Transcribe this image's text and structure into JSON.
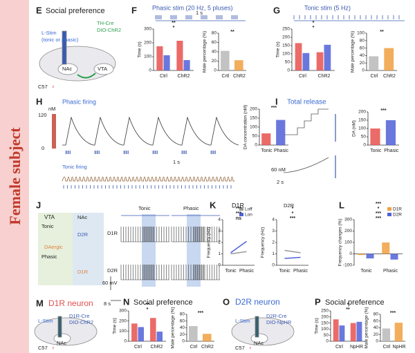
{
  "side_label": "Female subject",
  "panels": [
    {
      "letter": "E",
      "title": "Social preference",
      "labels": [
        "L-Stim",
        "(tonic or phasic)",
        "TH-Cre",
        "DIO-ChR2",
        "NAc",
        "VTA",
        "C57",
        "♀"
      ]
    },
    {
      "letter": "F",
      "title": "Phasic stim (20 Hz, 5 pluses)",
      "labels": [
        "1 s"
      ],
      "charts": [
        {
          "type": "bar",
          "ylabel": "Time (s)",
          "categories": [
            "Ctrl",
            "ChR2"
          ],
          "series": [
            {
              "color": "#e8514f",
              "values": [
                175,
                215
              ]
            },
            {
              "color": "#5060d8",
              "values": [
                110,
                75
              ]
            }
          ],
          "ylim": [
            0,
            300
          ],
          "yticks": [
            0,
            100,
            200,
            300
          ],
          "annotations": [
            "*",
            "**"
          ]
        },
        {
          "type": "bar",
          "ylabel": "Male percentage (%)",
          "categories": [
            "Crtl",
            "ChR2"
          ],
          "colors": [
            "#b8b8b8",
            "#f0a040"
          ],
          "series": [
            {
              "values": [
                42,
                22
              ]
            }
          ],
          "ylim": [
            0,
            80
          ],
          "yticks": [
            0,
            20,
            40,
            60,
            80
          ],
          "annotations": [
            "**"
          ]
        }
      ]
    },
    {
      "letter": "G",
      "title": "Tonic stim (5 Hz)",
      "labels": [],
      "charts": [
        {
          "type": "bar",
          "ylabel": "Time (s)",
          "categories": [
            "Ctrl",
            "ChR2"
          ],
          "series": [
            {
              "color": "#e8514f",
              "values": [
                165,
                110
              ]
            },
            {
              "color": "#5060d8",
              "values": [
                105,
                155
              ]
            }
          ],
          "ylim": [
            0,
            250
          ],
          "yticks": [
            0,
            50,
            100,
            150,
            200,
            250
          ],
          "annotations": [
            "*",
            "*"
          ]
        },
        {
          "type": "bar",
          "ylabel": "Male percentage (%)",
          "categories": [
            "Ctrl",
            "ChR2"
          ],
          "colors": [
            "#b8b8b8",
            "#f0a040"
          ],
          "series": [
            {
              "values": [
                38,
                60
              ]
            }
          ],
          "ylim": [
            0,
            100
          ],
          "yticks": [
            0,
            20,
            40,
            60,
            80,
            100
          ],
          "annotations": [
            "**"
          ]
        }
      ]
    },
    {
      "letter": "H",
      "title": "Phasic firing",
      "labels": [
        "Tonic firing",
        "1 s",
        "nM",
        "120",
        "0"
      ],
      "charts": [
        {
          "type": "bar",
          "ylabel": "DA concentration (nM)",
          "categories": [
            "Tonic",
            "Phasic"
          ],
          "colors": [
            "#e8514f",
            "#5060d8"
          ],
          "series": [
            {
              "values": [
                65,
                140
              ]
            }
          ],
          "ylim": [
            0,
            200
          ],
          "yticks": [
            0,
            50,
            100,
            150,
            200
          ],
          "annotations": [
            "***"
          ]
        }
      ]
    },
    {
      "letter": "I",
      "title": "Total release",
      "labels": [
        "60 nM",
        "2 s"
      ],
      "charts": [
        {
          "type": "bar",
          "ylabel": "DA (nM)",
          "categories": [
            "Tonic",
            "Phasic"
          ],
          "colors": [
            "#e8514f",
            "#5060d8"
          ],
          "series": [
            {
              "values": [
                100,
                150
              ]
            }
          ],
          "ylim": [
            0,
            200
          ],
          "yticks": [
            0,
            50,
            100,
            150,
            200
          ],
          "annotations": [
            "***"
          ]
        }
      ]
    },
    {
      "letter": "J",
      "title": "VTA",
      "labels": [
        "NAc",
        "Tonic",
        "Phasic",
        "DAergic",
        "D2R",
        "D1R",
        "Tonic",
        "Phasic",
        "D1R",
        "D2R",
        "60 mV",
        "8 s"
      ]
    },
    {
      "letter": "K",
      "title": "D1R",
      "labels": [
        "D2R"
      ],
      "charts": [
        {
          "type": "line",
          "ylabel": "Frequency (Hz)",
          "categories": [
            "Tonic",
            "Phasic"
          ],
          "series": [
            {
              "name": "Loff",
              "color": "#999999",
              "values": [
                1.0,
                1.2
              ]
            },
            {
              "name": "Lon",
              "color": "#5060d8",
              "values": [
                1.1,
                2.1
              ]
            }
          ],
          "ylim": [
            0,
            4
          ],
          "yticks": [
            0,
            1,
            2,
            3,
            4
          ],
          "annotations": [
            "ns",
            "***",
            "***"
          ]
        },
        {
          "type": "line",
          "ylabel": "Frequency (Hz)",
          "categories": [
            "Tonic",
            "Phasic"
          ],
          "series": [
            {
              "color": "#999999",
              "values": [
                1.3,
                1.1
              ]
            },
            {
              "color": "#5060d8",
              "values": [
                0.6,
                0.7
              ]
            }
          ],
          "ylim": [
            0,
            4
          ],
          "yticks": [
            0,
            1,
            2,
            3,
            4
          ],
          "annotations": [
            "***",
            "*",
            "*"
          ]
        }
      ]
    },
    {
      "letter": "L",
      "labels": [],
      "charts": [
        {
          "type": "bar",
          "ylabel": "Frequency changes (%)",
          "categories": [
            "Tonic",
            "Phasic"
          ],
          "series": [
            {
              "name": "D1R",
              "color": "#f0a040",
              "values": [
                -10,
                100
              ]
            },
            {
              "name": "D2R",
              "color": "#5060d8",
              "values": [
                -40,
                -50
              ]
            }
          ],
          "ylim": [
            -100,
            300
          ],
          "yticks": [
            -100,
            0,
            100,
            200,
            300
          ],
          "annotations": [
            "***",
            "***",
            "*",
            "***"
          ]
        }
      ]
    },
    {
      "letter": "M",
      "title": "D1R neuron",
      "labels": [
        "L-Stim",
        "D1R-Cre",
        "DIO-ChR2",
        "NAc",
        "C57",
        "♀"
      ]
    },
    {
      "letter": "N",
      "title": "Social preference",
      "labels": [],
      "charts": [
        {
          "type": "bar",
          "ylabel": "Time (s)",
          "categories": [
            "Ctrl",
            "ChR2"
          ],
          "series": [
            {
              "color": "#e8514f",
              "values": [
                175,
                230
              ]
            },
            {
              "color": "#5060d8",
              "values": [
                140,
                95
              ]
            }
          ],
          "ylim": [
            0,
            300
          ],
          "yticks": [
            0,
            100,
            200,
            300
          ],
          "annotations": [
            "*",
            "**"
          ]
        },
        {
          "type": "bar",
          "ylabel": "Male percentage (%)",
          "categories": [
            "Ctrl",
            "ChR2"
          ],
          "colors": [
            "#b8b8b8",
            "#f0a040"
          ],
          "series": [
            {
              "values": [
                45,
                22
              ]
            }
          ],
          "ylim": [
            0,
            80
          ],
          "yticks": [
            0,
            20,
            40,
            60,
            80
          ],
          "annotations": [
            "***"
          ]
        }
      ]
    },
    {
      "letter": "O",
      "title": "D2R neuron",
      "labels": [
        "L-Stim",
        "D2R-Cre",
        "DIO-NpHR",
        "NAc",
        "C57",
        "♀"
      ]
    },
    {
      "letter": "P",
      "title": "Social preference",
      "labels": [],
      "charts": [
        {
          "type": "bar",
          "ylabel": "Time (s)",
          "categories": [
            "Ctrl",
            "NpHR"
          ],
          "series": [
            {
              "color": "#e8514f",
              "values": [
                180,
                150
              ]
            },
            {
              "color": "#5060d8",
              "values": [
                130,
                160
              ]
            }
          ],
          "ylim": [
            0,
            250
          ],
          "yticks": [
            0,
            50,
            100,
            150,
            200,
            250
          ],
          "annotations": [
            "**",
            "*"
          ]
        },
        {
          "type": "bar",
          "ylabel": "Male percentage (%)",
          "categories": [
            "Ctrl",
            "NpHR"
          ],
          "colors": [
            "#b8b8b8",
            "#f0a040"
          ],
          "series": [
            {
              "values": [
                38,
                55
              ]
            }
          ],
          "ylim": [
            0,
            80
          ],
          "yticks": [
            0,
            20,
            40,
            60,
            80
          ],
          "annotations": [
            "***"
          ]
        }
      ]
    }
  ]
}
